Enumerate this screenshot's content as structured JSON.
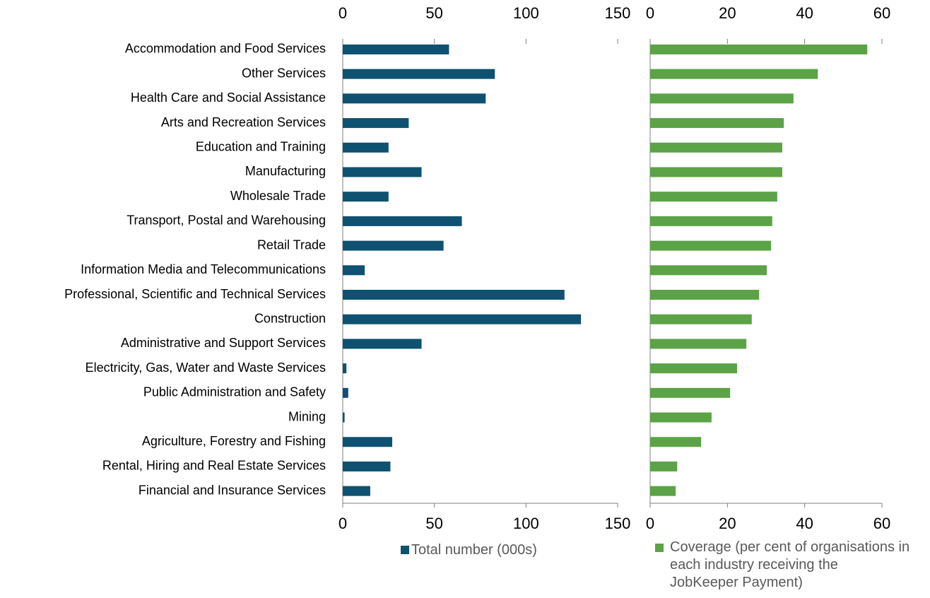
{
  "chart_data": [
    {
      "type": "bar",
      "orientation": "horizontal",
      "categories": [
        "Accommodation and Food Services",
        "Other Services",
        "Health Care and Social Assistance",
        "Arts and Recreation Services",
        "Education and Training",
        "Manufacturing",
        "Wholesale Trade",
        "Transport, Postal and Warehousing",
        "Retail Trade",
        "Information Media and Telecommunications",
        "Professional, Scientific and Technical Services",
        "Construction",
        "Administrative and Support Services",
        "Electricity, Gas, Water and Waste Services",
        "Public Administration and Safety",
        "Mining",
        "Agriculture, Forestry and Fishing",
        "Rental, Hiring and Real Estate Services",
        "Financial and Insurance Services"
      ],
      "series": [
        {
          "name": "Total number (000s)",
          "color": "#0f5170",
          "values": [
            58,
            83,
            78,
            36,
            25,
            43,
            25,
            65,
            55,
            12,
            121,
            130,
            43,
            2,
            3,
            1,
            27,
            26,
            15
          ]
        }
      ],
      "xlim": [
        0,
        150
      ],
      "xticks": [
        0,
        50,
        100,
        150
      ]
    },
    {
      "type": "bar",
      "orientation": "horizontal",
      "series": [
        {
          "name": "Coverage (per cent of organisations in each industry receiving the JobKeeper Payment)",
          "color": "#5ba346",
          "values": [
            56.2,
            43.4,
            37.1,
            34.6,
            34.2,
            34.2,
            32.9,
            31.6,
            31.3,
            30.2,
            28.2,
            26.3,
            24.9,
            22.5,
            20.7,
            15.9,
            13.2,
            7,
            6.6
          ]
        }
      ],
      "xlim": [
        0,
        60
      ],
      "xticks": [
        0,
        20,
        40,
        60
      ]
    }
  ]
}
